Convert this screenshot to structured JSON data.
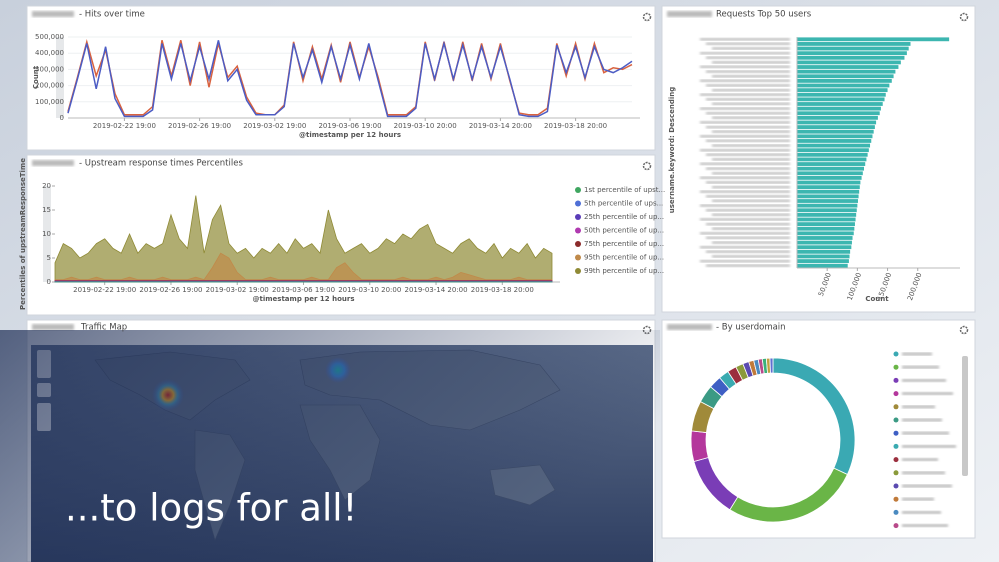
{
  "chart_data": [
    {
      "type": "line",
      "title": "- Hits over time",
      "x_label": "@timestamp per 12 hours",
      "y_label": "Count",
      "categories": [
        null,
        null,
        null,
        null,
        null,
        null,
        "2019-02-22 19:00",
        null,
        null,
        null,
        null,
        null,
        null,
        null,
        "2019-02-26 19:00",
        null,
        null,
        null,
        null,
        null,
        null,
        null,
        "2019-03-02 19:00",
        null,
        null,
        null,
        null,
        null,
        null,
        null,
        "2019-03-06 19:00",
        null,
        null,
        null,
        null,
        null,
        null,
        null,
        "2019-03-10 20:00",
        null,
        null,
        null,
        null,
        null,
        null,
        null,
        "2019-03-14 20:00",
        null,
        null,
        null,
        null,
        null,
        null,
        null,
        "2019-03-18 20:00",
        null,
        null,
        null,
        null,
        null,
        null
      ],
      "series": [
        {
          "color": "#d9623f",
          "values": [
            40000,
            250000,
            470000,
            260000,
            420000,
            150000,
            20000,
            20000,
            20000,
            70000,
            480000,
            260000,
            480000,
            200000,
            470000,
            190000,
            460000,
            250000,
            320000,
            130000,
            30000,
            20000,
            20000,
            80000,
            470000,
            230000,
            440000,
            240000,
            450000,
            220000,
            470000,
            250000,
            440000,
            250000,
            20000,
            20000,
            20000,
            70000,
            470000,
            230000,
            470000,
            230000,
            470000,
            230000,
            460000,
            240000,
            460000,
            230000,
            30000,
            20000,
            20000,
            60000,
            460000,
            260000,
            460000,
            240000,
            460000,
            280000,
            310000,
            300000,
            330000
          ]
        },
        {
          "color": "#4c5cc4",
          "values": [
            30000,
            240000,
            460000,
            180000,
            440000,
            120000,
            10000,
            10000,
            10000,
            50000,
            460000,
            240000,
            460000,
            230000,
            440000,
            240000,
            480000,
            230000,
            300000,
            110000,
            20000,
            20000,
            20000,
            70000,
            460000,
            250000,
            420000,
            220000,
            440000,
            240000,
            450000,
            240000,
            460000,
            230000,
            10000,
            10000,
            10000,
            60000,
            460000,
            240000,
            460000,
            240000,
            450000,
            240000,
            440000,
            250000,
            440000,
            240000,
            20000,
            10000,
            10000,
            40000,
            450000,
            280000,
            440000,
            250000,
            440000,
            300000,
            280000,
            310000,
            350000
          ]
        }
      ],
      "ylim": [
        0,
        500000
      ],
      "yticks": [
        0,
        {
          "value": 100000,
          "label": "100,000"
        },
        {
          "value": 200000,
          "label": "200,000"
        },
        {
          "value": 300000,
          "label": "300,000"
        },
        {
          "value": 400000,
          "label": "400,000"
        },
        {
          "value": 500000,
          "label": "500,000"
        }
      ],
      "grid": true
    },
    {
      "type": "area",
      "title": "- Upstream response times Percentiles",
      "x_label": "@timestamp per 12 hours",
      "y_label": "Percentiles of upstreamResponseTime",
      "categories": [
        null,
        null,
        null,
        null,
        null,
        null,
        "2019-02-22 19:00",
        null,
        null,
        null,
        null,
        null,
        null,
        null,
        "2019-02-26 19:00",
        null,
        null,
        null,
        null,
        null,
        null,
        null,
        "2019-03-02 19:00",
        null,
        null,
        null,
        null,
        null,
        null,
        null,
        "2019-03-06 19:00",
        null,
        null,
        null,
        null,
        null,
        null,
        null,
        "2019-03-10 20:00",
        null,
        null,
        null,
        null,
        null,
        null,
        null,
        "2019-03-14 20:00",
        null,
        null,
        null,
        null,
        null,
        null,
        null,
        "2019-03-18 20:00",
        null,
        null,
        null,
        null,
        null,
        null
      ],
      "legend": "right",
      "series": [
        {
          "name": "1st percentile of upst...",
          "color": "#3fa660",
          "values": [
            0.03,
            0.03,
            0.03,
            0.03,
            0.03,
            0.03,
            0.03,
            0.03,
            0.03,
            0.03,
            0.03,
            0.03,
            0.03,
            0.03,
            0.03,
            0.03,
            0.03,
            0.03,
            0.03,
            0.03,
            0.03,
            0.03,
            0.03,
            0.03,
            0.03,
            0.03,
            0.03,
            0.03,
            0.03,
            0.03,
            0.03,
            0.03,
            0.03,
            0.03,
            0.03,
            0.03,
            0.03,
            0.03,
            0.03,
            0.03,
            0.03,
            0.03,
            0.03,
            0.03,
            0.03,
            0.03,
            0.03,
            0.03,
            0.03,
            0.03,
            0.03,
            0.03,
            0.03,
            0.03,
            0.03,
            0.03,
            0.03,
            0.03,
            0.03,
            0.03,
            0.03
          ]
        },
        {
          "name": "5th percentile of ups...",
          "color": "#4f6fd6",
          "values": [
            0.05,
            0.05,
            0.05,
            0.05,
            0.05,
            0.05,
            0.05,
            0.05,
            0.05,
            0.05,
            0.05,
            0.05,
            0.05,
            0.05,
            0.05,
            0.05,
            0.05,
            0.05,
            0.05,
            0.05,
            0.05,
            0.05,
            0.05,
            0.05,
            0.05,
            0.05,
            0.05,
            0.05,
            0.05,
            0.05,
            0.05,
            0.05,
            0.05,
            0.05,
            0.05,
            0.05,
            0.05,
            0.05,
            0.05,
            0.05,
            0.05,
            0.05,
            0.05,
            0.05,
            0.05,
            0.05,
            0.05,
            0.05,
            0.05,
            0.05,
            0.05,
            0.05,
            0.05,
            0.05,
            0.05,
            0.05,
            0.05,
            0.05,
            0.05,
            0.05,
            0.05
          ]
        },
        {
          "name": "25th percentile of up...",
          "color": "#5a3cb8",
          "values": [
            0.1,
            0.1,
            0.1,
            0.1,
            0.1,
            0.1,
            0.1,
            0.1,
            0.1,
            0.1,
            0.1,
            0.1,
            0.1,
            0.1,
            0.1,
            0.1,
            0.1,
            0.1,
            0.1,
            0.1,
            0.1,
            0.1,
            0.1,
            0.1,
            0.1,
            0.1,
            0.1,
            0.1,
            0.1,
            0.1,
            0.1,
            0.1,
            0.1,
            0.1,
            0.1,
            0.1,
            0.1,
            0.1,
            0.1,
            0.1,
            0.1,
            0.1,
            0.1,
            0.1,
            0.1,
            0.1,
            0.1,
            0.1,
            0.1,
            0.1,
            0.1,
            0.1,
            0.1,
            0.1,
            0.1,
            0.1,
            0.1,
            0.1,
            0.1,
            0.1,
            0.1
          ]
        },
        {
          "name": "50th percentile of up...",
          "color": "#b03ab0",
          "values": [
            0.2,
            0.2,
            0.2,
            0.2,
            0.2,
            0.2,
            0.2,
            0.2,
            0.2,
            0.2,
            0.2,
            0.2,
            0.2,
            0.2,
            0.2,
            0.2,
            0.2,
            0.2,
            0.2,
            0.2,
            0.2,
            0.2,
            0.2,
            0.2,
            0.2,
            0.2,
            0.2,
            0.2,
            0.2,
            0.2,
            0.2,
            0.2,
            0.2,
            0.2,
            0.2,
            0.2,
            0.2,
            0.2,
            0.2,
            0.2,
            0.2,
            0.2,
            0.2,
            0.2,
            0.2,
            0.2,
            0.2,
            0.2,
            0.2,
            0.2,
            0.2,
            0.2,
            0.2,
            0.2,
            0.2,
            0.2,
            0.2,
            0.2,
            0.2,
            0.2,
            0.2
          ]
        },
        {
          "name": "75th percentile of up...",
          "color": "#8b2b2b",
          "values": [
            0.3,
            0.3,
            0.3,
            0.3,
            0.3,
            0.3,
            0.3,
            0.3,
            0.3,
            0.3,
            0.3,
            0.3,
            0.3,
            0.3,
            0.3,
            0.3,
            0.3,
            0.3,
            0.3,
            0.3,
            0.3,
            0.3,
            0.3,
            0.3,
            0.3,
            0.3,
            0.3,
            0.3,
            0.3,
            0.3,
            0.3,
            0.3,
            0.3,
            0.3,
            0.3,
            0.3,
            0.3,
            0.3,
            0.3,
            0.3,
            0.3,
            0.3,
            0.3,
            0.3,
            0.3,
            0.3,
            0.3,
            0.3,
            0.3,
            0.3,
            0.3,
            0.3,
            0.3,
            0.3,
            0.3,
            0.3,
            0.3,
            0.3,
            0.3,
            0.3,
            0.3
          ]
        },
        {
          "name": "95th percentile of up...",
          "color": "#c08a4a",
          "values": [
            0.5,
            0.5,
            1,
            0.5,
            0.5,
            1,
            0.5,
            0.5,
            0.5,
            1,
            0.5,
            0.5,
            0.5,
            1,
            0.5,
            0.5,
            0.5,
            1,
            0.5,
            3,
            6,
            5,
            2,
            0.5,
            0.5,
            0.5,
            1,
            0.5,
            0.5,
            0.5,
            0.5,
            1,
            0.5,
            0.5,
            3,
            4,
            2,
            0.5,
            0.5,
            0.5,
            0.5,
            0.5,
            1,
            0.5,
            0.5,
            0.5,
            1,
            0.5,
            1,
            2,
            1.5,
            1,
            0.5,
            0.5,
            0.5,
            0.5,
            1,
            0.5,
            0.5,
            0.5,
            0.5
          ]
        },
        {
          "name": "99th percentile of up...",
          "color": "#8f8a35",
          "values": [
            4,
            8,
            7,
            5,
            6,
            8,
            9,
            7,
            6,
            10,
            6,
            8,
            7,
            8,
            14,
            9,
            7,
            18,
            6,
            13,
            16,
            8,
            6,
            7,
            5,
            7,
            6,
            8,
            6,
            9,
            7,
            8,
            6,
            15,
            9,
            6,
            7,
            8,
            6,
            7,
            9,
            8,
            10,
            9,
            11,
            12,
            8,
            7,
            6,
            8,
            9,
            7,
            6,
            8,
            5,
            7,
            6,
            8,
            5,
            7,
            6
          ]
        }
      ],
      "ylim": [
        0,
        20
      ],
      "yticks": [
        0,
        5,
        10,
        15,
        20
      ]
    },
    {
      "type": "hbar",
      "title": "Requests Top 50 users",
      "x_label": "Count",
      "y_label": "username.keyword: Descending",
      "color": "#3cb6b0",
      "categories": [
        null,
        null,
        null,
        null,
        null,
        null,
        null,
        null,
        null,
        null,
        null,
        null,
        null,
        null,
        null,
        null,
        null,
        null,
        null,
        null,
        null,
        null,
        null,
        null,
        null,
        null,
        null,
        null,
        null,
        null,
        null,
        null,
        null,
        null,
        null,
        null,
        null,
        null,
        null,
        null,
        null,
        null,
        null,
        null,
        null,
        null,
        null,
        null,
        null,
        null
      ],
      "values": [
        252000,
        188000,
        185000,
        182000,
        178000,
        172000,
        168000,
        163000,
        160000,
        157000,
        153000,
        150000,
        147000,
        145000,
        142000,
        139000,
        137000,
        134000,
        131000,
        129000,
        127000,
        125000,
        123000,
        121000,
        119000,
        117000,
        115000,
        113000,
        111000,
        109000,
        107000,
        105000,
        104000,
        103000,
        102000,
        101000,
        100000,
        99000,
        98000,
        97000,
        96000,
        95000,
        94000,
        92000,
        91000,
        90000,
        88000,
        87000,
        86000,
        84000
      ],
      "xlim": [
        0,
        270000
      ],
      "xticks": [
        {
          "value": 50000,
          "label": "50,000"
        },
        {
          "value": 100000,
          "label": "100,000"
        },
        {
          "value": 150000,
          "label": "150,000"
        },
        {
          "value": 200000,
          "label": "200,000"
        }
      ]
    },
    {
      "type": "pie",
      "title": "- By userdomain",
      "donut": true,
      "categories": [
        null,
        null,
        null,
        null,
        null,
        null,
        null,
        null,
        null,
        null,
        null,
        null,
        null,
        null,
        null,
        null,
        null
      ],
      "values": [
        32,
        27,
        12,
        6,
        6,
        3.5,
        2.5,
        2,
        1.8,
        1.5,
        1.2,
        1,
        0.9,
        0.8,
        0.8,
        0.7,
        0.6
      ],
      "colors": [
        "#3aa9b3",
        "#6ab547",
        "#7a3db6",
        "#b4379c",
        "#a08a3a",
        "#3b9a84",
        "#3e5fc4",
        "#3aaab0",
        "#9b2f3e",
        "#8a9a3a",
        "#5a4ab0",
        "#c07a3a",
        "#4a8ac0",
        "#b84a8a",
        "#3ab07a",
        "#c0a040",
        "#6070d0"
      ]
    }
  ],
  "map": {
    "title": "Traffic Map"
  },
  "overlay_text": "...to logs for all!"
}
